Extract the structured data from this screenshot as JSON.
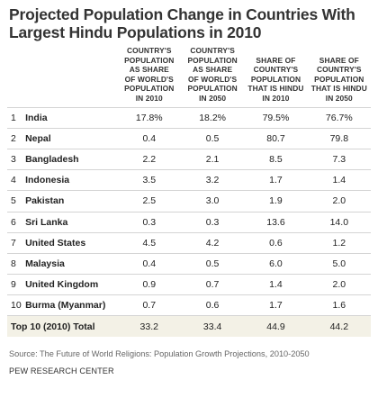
{
  "title_line1": "Projected Population Change in Countries With",
  "title_line2": "Largest Hindu Populations in 2010",
  "chart_data": {
    "type": "table",
    "title": "Projected Population Change in Countries With Largest Hindu Populations in 2010",
    "columns": [
      "COUNTRY'S POPULATION AS SHARE OF WORLD'S POPULATION IN 2010",
      "COUNTRY'S POPULATION AS SHARE OF WORLD'S POPULATION IN 2050",
      "SHARE OF COUNTRY'S POPULATION THAT IS HINDU IN 2010",
      "SHARE OF COUNTRY'S POPULATION THAT IS HINDU IN 2050"
    ],
    "rows": [
      {
        "rank": "1",
        "country": "India",
        "values": [
          "17.8%",
          "18.2%",
          "79.5%",
          "76.7%"
        ]
      },
      {
        "rank": "2",
        "country": "Nepal",
        "values": [
          "0.4",
          "0.5",
          "80.7",
          "79.8"
        ]
      },
      {
        "rank": "3",
        "country": "Bangladesh",
        "values": [
          "2.2",
          "2.1",
          "8.5",
          "7.3"
        ]
      },
      {
        "rank": "4",
        "country": "Indonesia",
        "values": [
          "3.5",
          "3.2",
          "1.7",
          "1.4"
        ]
      },
      {
        "rank": "5",
        "country": "Pakistan",
        "values": [
          "2.5",
          "3.0",
          "1.9",
          "2.0"
        ]
      },
      {
        "rank": "6",
        "country": "Sri Lanka",
        "values": [
          "0.3",
          "0.3",
          "13.6",
          "14.0"
        ]
      },
      {
        "rank": "7",
        "country": "United States",
        "values": [
          "4.5",
          "4.2",
          "0.6",
          "1.2"
        ]
      },
      {
        "rank": "8",
        "country": "Malaysia",
        "values": [
          "0.4",
          "0.5",
          "6.0",
          "5.0"
        ]
      },
      {
        "rank": "9",
        "country": "United Kingdom",
        "values": [
          "0.9",
          "0.7",
          "1.4",
          "2.0"
        ]
      },
      {
        "rank": "10",
        "country": "Burma (Myanmar)",
        "values": [
          "0.7",
          "0.6",
          "1.7",
          "1.6"
        ]
      }
    ],
    "total": {
      "label": "Top 10 (2010) Total",
      "values": [
        "33.2",
        "33.4",
        "44.9",
        "44.2"
      ]
    }
  },
  "header_lines": [
    [
      "COUNTRY'S",
      "POPULATION",
      "AS SHARE",
      "OF WORLD'S",
      "POPULATION",
      "IN 2010"
    ],
    [
      "COUNTRY'S",
      "POPULATION",
      "AS SHARE",
      "OF WORLD'S",
      "POPULATION",
      "IN 2050"
    ],
    [
      "SHARE OF",
      "COUNTRY'S",
      "POPULATION",
      "THAT IS HINDU",
      "IN 2010"
    ],
    [
      "SHARE OF",
      "COUNTRY'S",
      "POPULATION",
      "THAT IS HINDU",
      "IN 2050"
    ]
  ],
  "source": "Source: The Future of World Religions: Population Growth Projections, 2010-2050",
  "org": "PEW RESEARCH CENTER",
  "colors": {
    "total_row_bg": "#f3f1e6",
    "rule": "#d4d4d4",
    "title": "#333333"
  }
}
